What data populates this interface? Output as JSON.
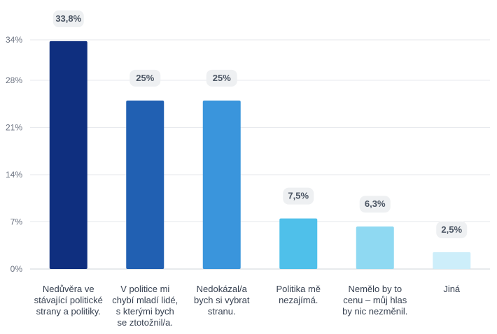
{
  "chart_data": {
    "type": "bar",
    "categories": [
      "Nedůvěra ve\nstávající politické\nstrany a politiky.",
      "V politice mi\nchybí mladí lidé,\ns kterými bych\nse ztotožnil/a.",
      "Nedokázal/a\nbych si vybrat\nstranu.",
      "Politika mě\nnezajímá.",
      "Nemělo by to\ncenu – můj hlas\nby nic nezměnil.",
      "Jiná"
    ],
    "values": [
      33.8,
      25,
      25,
      7.5,
      6.3,
      2.5
    ],
    "data_labels": [
      "33,8%",
      "25%",
      "25%",
      "7,5%",
      "6,3%",
      "2,5%"
    ],
    "colors": [
      "#0f2f7f",
      "#2160b2",
      "#3a95dc",
      "#4fc0ea",
      "#8fd9f2",
      "#cdeefa"
    ],
    "y_ticks": [
      0,
      7,
      14,
      21,
      28,
      34
    ],
    "y_tick_labels": [
      "0%",
      "7%",
      "14%",
      "21%",
      "28%",
      "34%"
    ],
    "ylim": [
      0,
      34
    ],
    "grid": true
  }
}
